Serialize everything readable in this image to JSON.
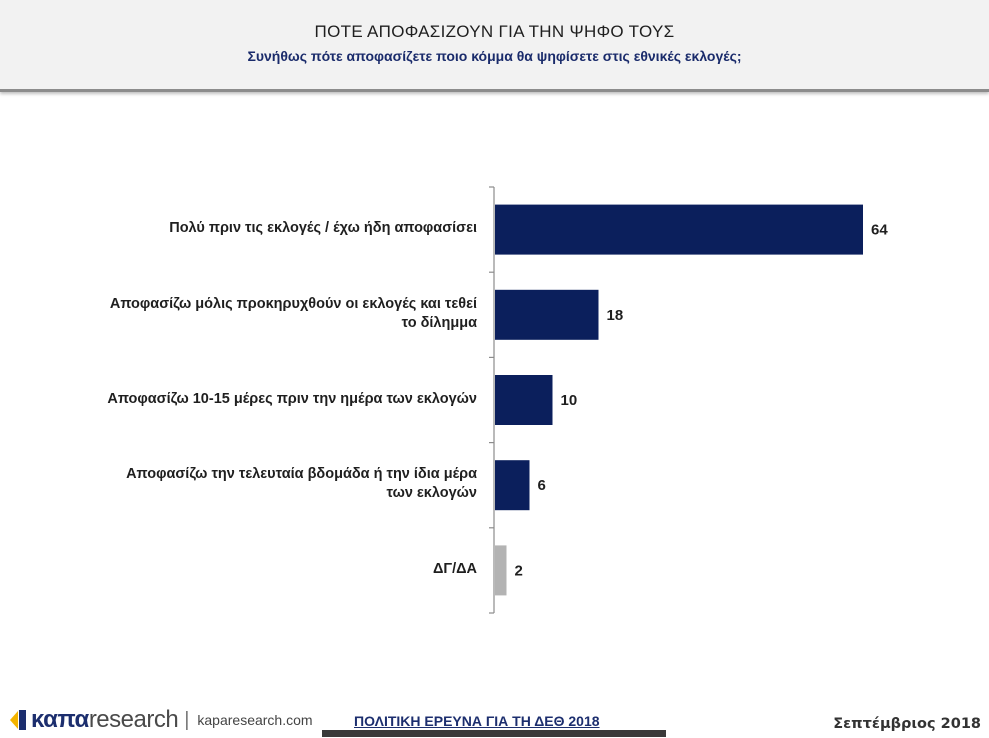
{
  "header": {
    "title": "ΠΟΤΕ ΑΠΟΦΑΣΙΖΟΥΝ ΓΙΑ ΤΗΝ ΨΗΦΟ ΤΟΥΣ",
    "subtitle": "Συνήθως πότε αποφασίζετε ποιο κόμμα θα ψηφίσετε στις εθνικές εκλογές;"
  },
  "chart_data": {
    "type": "bar",
    "orientation": "horizontal",
    "title": "ΠΟΤΕ ΑΠΟΦΑΣΙΖΟΥΝ ΓΙΑ ΤΗΝ ΨΗΦΟ ΤΟΥΣ",
    "subtitle": "Συνήθως πότε αποφασίζετε ποιο κόμμα θα ψηφίσετε στις εθνικές εκλογές;",
    "categories": [
      [
        "Πολύ πριν τις εκλογές / έχω ήδη αποφασίσει"
      ],
      [
        "Αποφασίζω μόλις προκηρυχθούν οι εκλογές και τεθεί",
        "το δίλημμα"
      ],
      [
        "Αποφασίζω 10-15 μέρες πριν την ημέρα των εκλογών"
      ],
      [
        "Αποφασίζω την τελευταία βδομάδα ή την ίδια μέρα",
        "των εκλογών"
      ],
      [
        "ΔΓ/ΔΑ"
      ]
    ],
    "values": [
      64,
      18,
      10,
      6,
      2
    ],
    "data_labels": [
      "64",
      "18",
      "10",
      "6",
      "2"
    ],
    "bar_colors": [
      "#0b1f5c",
      "#0b1f5c",
      "#0b1f5c",
      "#0b1f5c",
      "#b3b3b3"
    ],
    "xlim": [
      0,
      64
    ],
    "grid": false,
    "legend": "none"
  },
  "footer": {
    "logo_brand": "καπα",
    "logo_research": "research",
    "logo_separator": "|",
    "url": "kaparesearch.com",
    "survey": "ΠΟΛΙΤΙΚΗ ΕΡΕΥΝΑ ΓΙΑ ΤΗ ΔΕΘ 2018",
    "date": "Σεπτέμβριος 2018"
  },
  "colors": {
    "accent": "#0b1f5c",
    "dont_know": "#b3b3b3",
    "logo_yellow": "#f4b400",
    "logo_blue": "#1c2e6e"
  }
}
